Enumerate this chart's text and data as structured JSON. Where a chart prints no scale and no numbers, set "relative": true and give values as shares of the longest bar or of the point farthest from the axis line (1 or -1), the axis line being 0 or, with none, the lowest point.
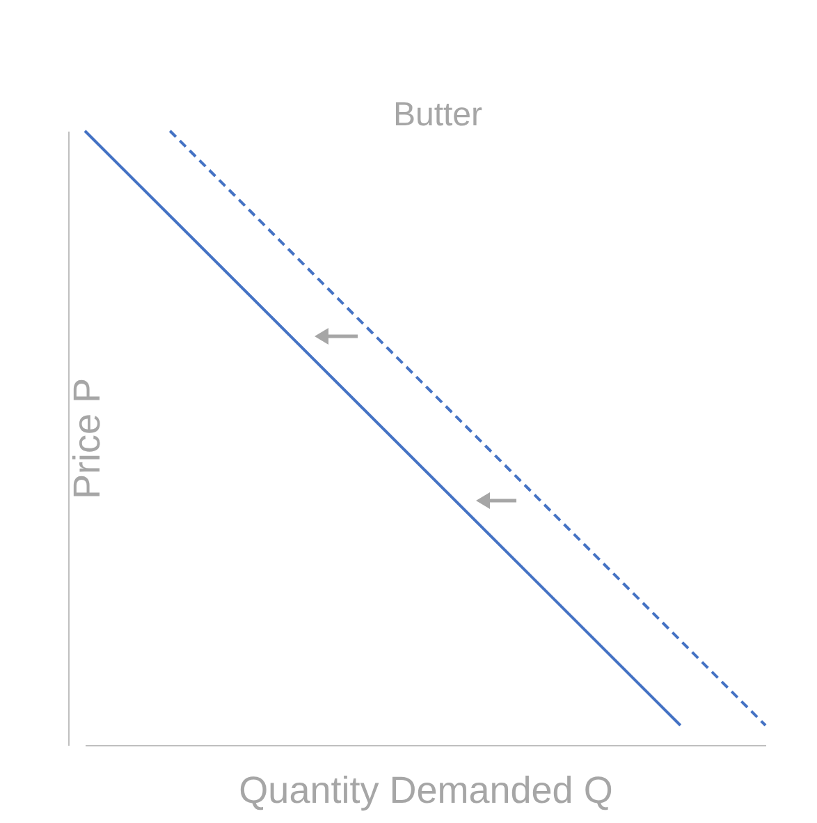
{
  "chart_data": {
    "type": "line",
    "title": "Butter",
    "xlabel": "Quantity Demanded Q",
    "ylabel": "Price P",
    "relative": true,
    "marker": "none",
    "categories": [
      null,
      null,
      null,
      null,
      null,
      null,
      null,
      null,
      null
    ],
    "series": [
      {
        "color": "#4472c4",
        "line_style": "solid",
        "values": [
          1,
          null,
          null,
          null,
          null,
          null,
          null,
          0.032,
          null
        ]
      },
      {
        "color": "#4472c4",
        "line_style": "dashed",
        "values": [
          null,
          1,
          null,
          null,
          null,
          null,
          null,
          null,
          0.032
        ]
      }
    ]
  }
}
